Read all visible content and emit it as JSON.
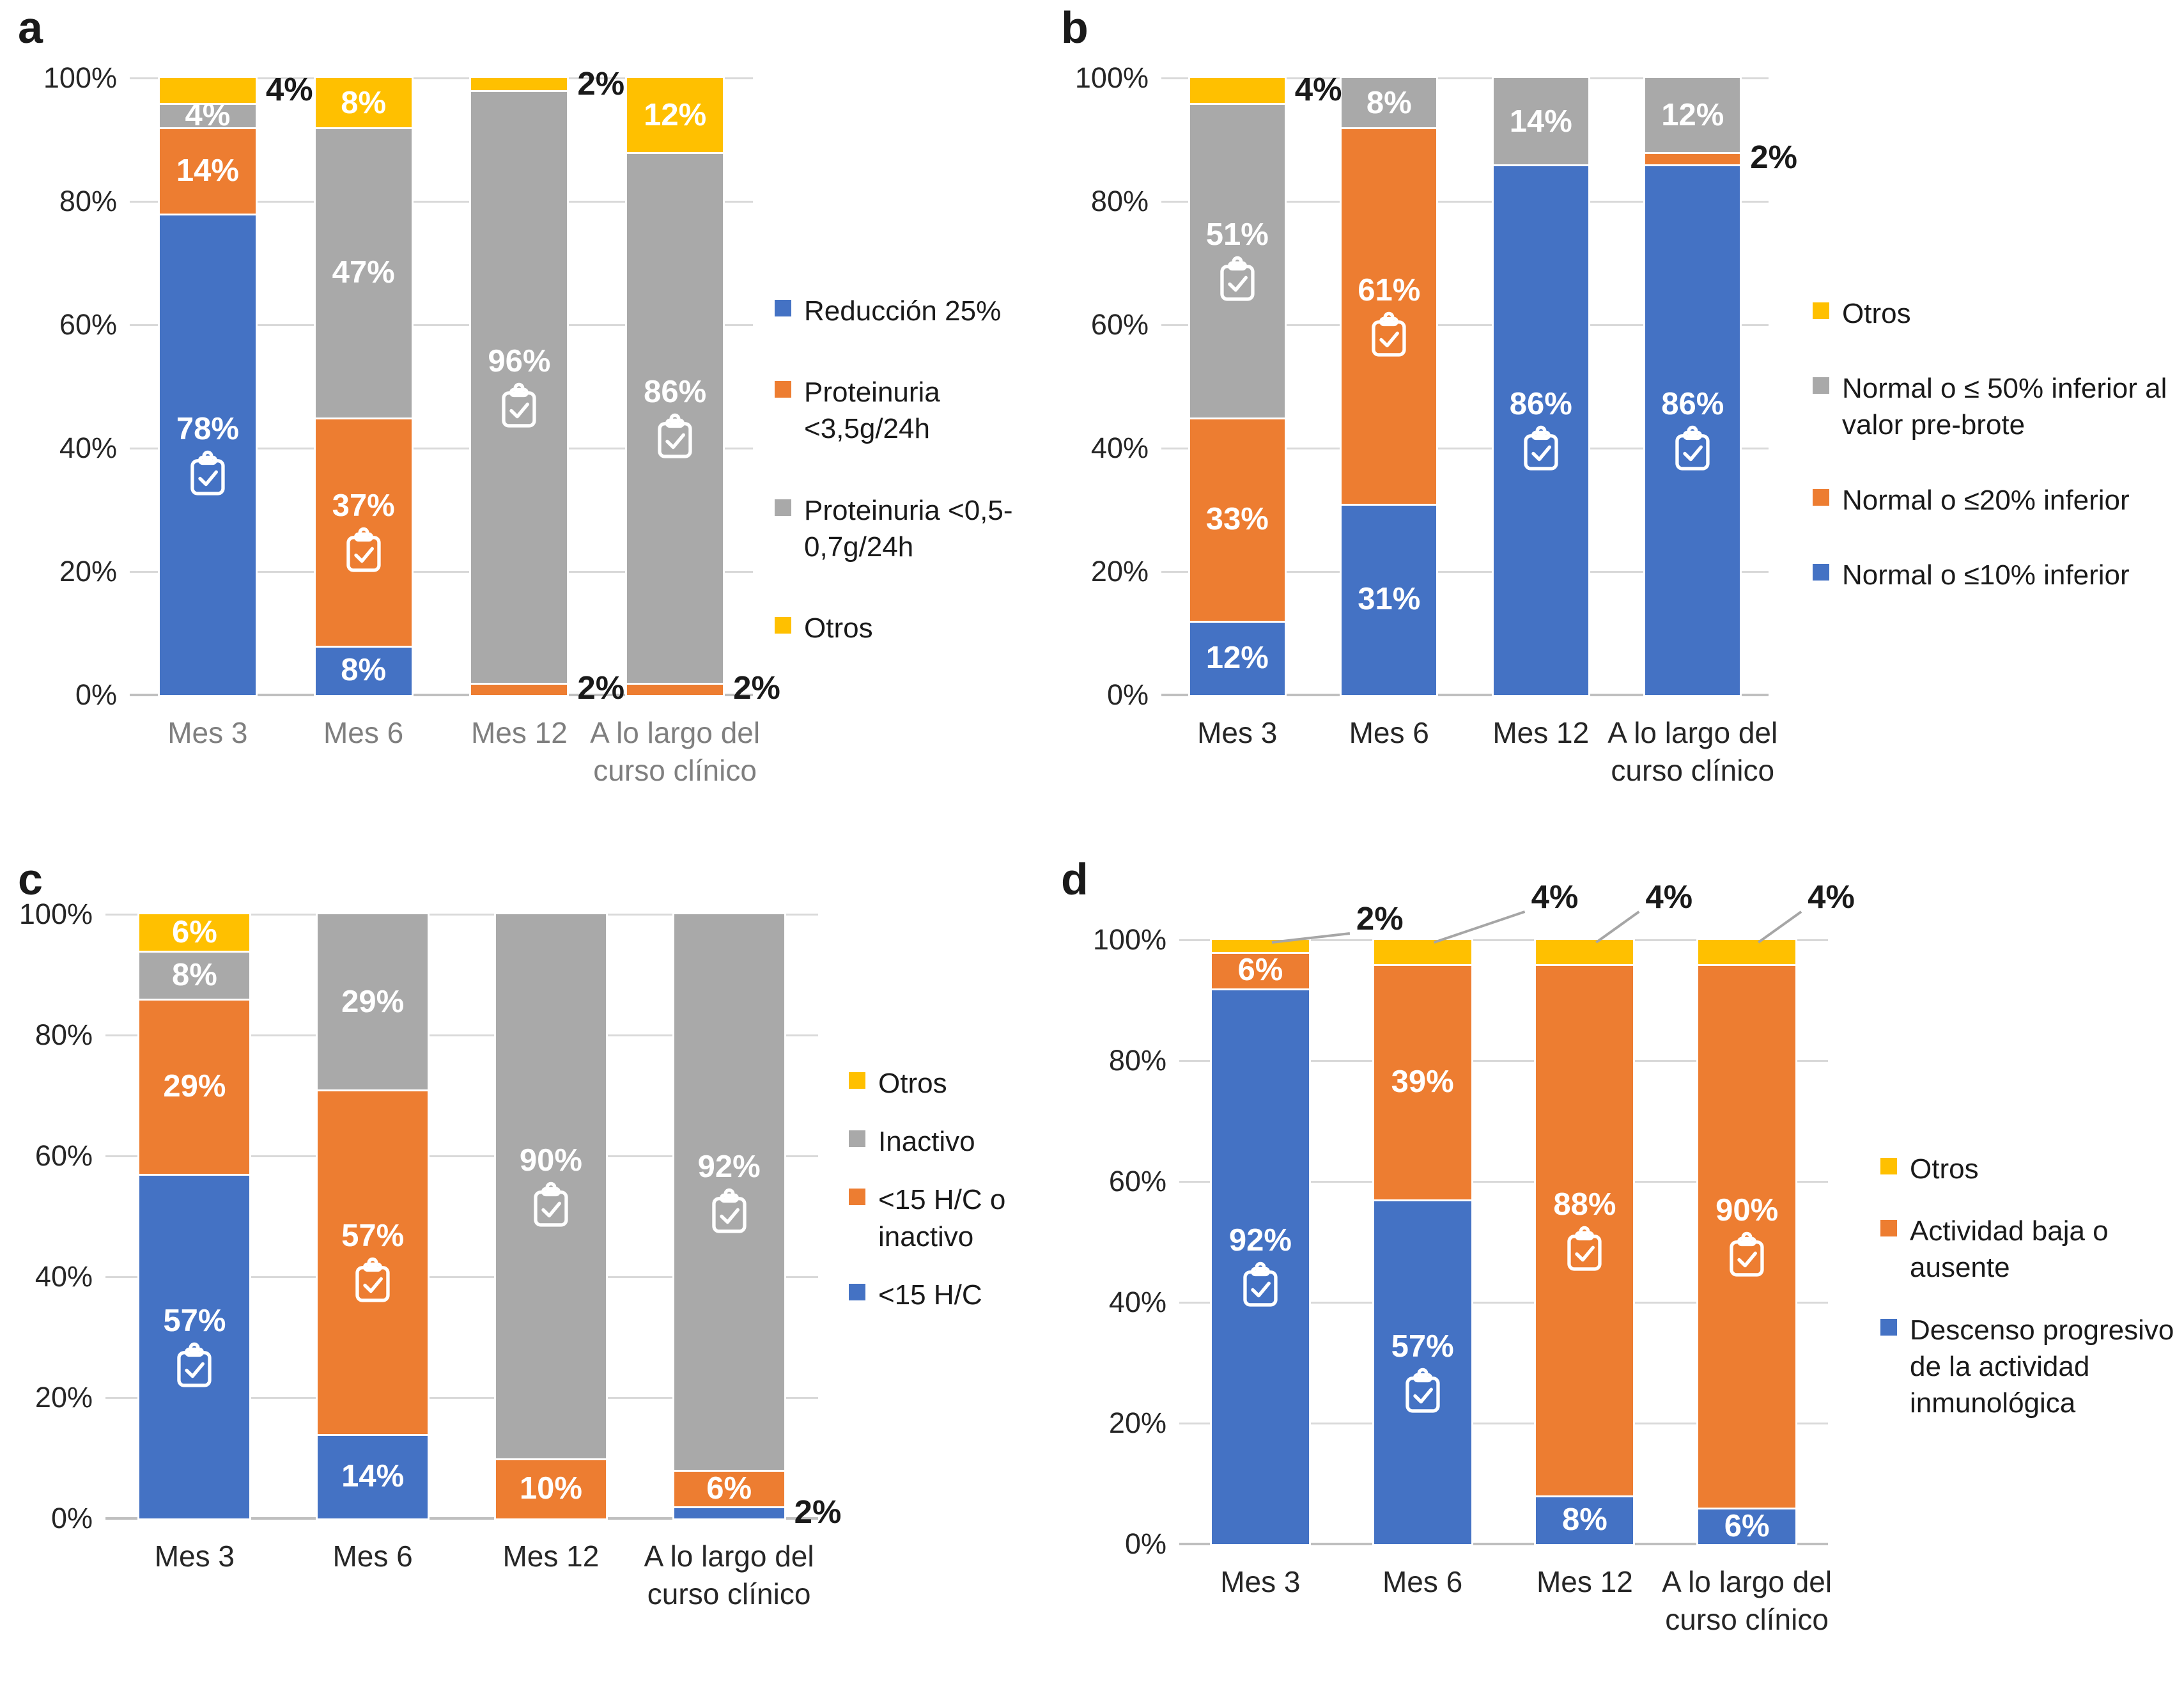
{
  "colors": {
    "blue": "#4472C4",
    "orange": "#ED7D31",
    "gray": "#A9A9A9",
    "yellow": "#FFC000",
    "gridline": "#D9D9D9",
    "axis_line": "#BFBFBF",
    "annotation_text": "#1a1a1a",
    "leader_line": "#A6A6A6",
    "x_label_default": "#262626",
    "x_label_muted": "#7F7F7F",
    "segment_label_text": "#FFFFFF"
  },
  "icon_glyph": "clipboard-check-icon",
  "chart_data": [
    {
      "id": "a",
      "panel_label": "a",
      "type": "bar",
      "stacked": true,
      "grid": true,
      "ylim": [
        0,
        100
      ],
      "y_ticks": [
        "100%",
        "80%",
        "60%",
        "40%",
        "20%",
        "0%"
      ],
      "x_label_muted": true,
      "legend_position": "right",
      "categories": [
        "Mes 3",
        "Mes 6",
        "Mes 12",
        "A lo largo del curso clínico"
      ],
      "series": [
        {
          "name": "Reducción 25%",
          "color_key": "blue",
          "values": [
            78,
            8,
            0,
            0
          ]
        },
        {
          "name": "Proteinuria <3,5g/24h",
          "color_key": "orange",
          "values": [
            14,
            37,
            2,
            2
          ]
        },
        {
          "name": "Proteinuria <0,5-0,7g/24h",
          "color_key": "gray",
          "values": [
            4,
            47,
            96,
            86
          ]
        },
        {
          "name": "Otros",
          "color_key": "yellow",
          "values": [
            4,
            8,
            2,
            12
          ]
        }
      ],
      "legend": [
        {
          "label": "Reducción 25%",
          "color_key": "blue"
        },
        {
          "label": "Proteinuria <3,5g/24h",
          "color_key": "orange"
        },
        {
          "label": "Proteinuria <0,5-0,7g/24h",
          "color_key": "gray"
        },
        {
          "label": "Otros",
          "color_key": "yellow"
        }
      ],
      "icon_segments": [
        {
          "category": "Mes 3",
          "series": "Reducción 25%"
        },
        {
          "category": "Mes 6",
          "series": "Proteinuria <3,5g/24h"
        },
        {
          "category": "Mes 12",
          "series": "Proteinuria <0,5-0,7g/24h"
        },
        {
          "category": "A lo largo del curso clínico",
          "series": "Proteinuria <0,5-0,7g/24h"
        }
      ],
      "outside_labels": [
        {
          "category": "Mes 3",
          "series": "Otros",
          "text": "4%",
          "placement": "right"
        },
        {
          "category": "Mes 12",
          "series": "Proteinuria <3,5g/24h",
          "text": "2%",
          "placement": "right"
        },
        {
          "category": "Mes 12",
          "series": "Otros",
          "text": "2%",
          "placement": "right"
        },
        {
          "category": "A lo largo del curso clínico",
          "series": "Proteinuria <3,5g/24h",
          "text": "2%",
          "placement": "right"
        }
      ]
    },
    {
      "id": "b",
      "panel_label": "b",
      "type": "bar",
      "stacked": true,
      "grid": true,
      "ylim": [
        0,
        100
      ],
      "y_ticks": [
        "100%",
        "80%",
        "60%",
        "40%",
        "20%",
        "0%"
      ],
      "x_label_muted": false,
      "legend_position": "right",
      "categories": [
        "Mes 3",
        "Mes 6",
        "Mes 12",
        "A lo largo del curso clínico"
      ],
      "series": [
        {
          "name": "Normal o ≤10% inferior",
          "color_key": "blue",
          "values": [
            12,
            31,
            86,
            86
          ]
        },
        {
          "name": "Normal o ≤20% inferior",
          "color_key": "orange",
          "values": [
            33,
            61,
            0,
            2
          ]
        },
        {
          "name": "Normal o ≤ 50% inferior al valor pre-brote",
          "color_key": "gray",
          "values": [
            51,
            8,
            14,
            12
          ]
        },
        {
          "name": "Otros",
          "color_key": "yellow",
          "values": [
            4,
            0,
            0,
            0
          ]
        }
      ],
      "legend": [
        {
          "label": "Otros",
          "color_key": "yellow"
        },
        {
          "label": "Normal o ≤ 50% inferior al valor pre-brote",
          "color_key": "gray"
        },
        {
          "label": "Normal o ≤20% inferior",
          "color_key": "orange"
        },
        {
          "label": "Normal o ≤10% inferior",
          "color_key": "blue"
        }
      ],
      "icon_segments": [
        {
          "category": "Mes 3",
          "series": "Normal o ≤ 50% inferior al valor pre-brote"
        },
        {
          "category": "Mes 6",
          "series": "Normal o ≤20% inferior"
        },
        {
          "category": "Mes 12",
          "series": "Normal o ≤10% inferior"
        },
        {
          "category": "A lo largo del curso clínico",
          "series": "Normal o ≤10% inferior"
        }
      ],
      "outside_labels": [
        {
          "category": "Mes 3",
          "series": "Otros",
          "text": "4%",
          "placement": "right"
        },
        {
          "category": "A lo largo del curso clínico",
          "series": "Normal o ≤20% inferior",
          "text": "2%",
          "placement": "right"
        }
      ]
    },
    {
      "id": "c",
      "panel_label": "c",
      "type": "bar",
      "stacked": true,
      "grid": true,
      "ylim": [
        0,
        100
      ],
      "y_ticks": [
        "100%",
        "80%",
        "60%",
        "40%",
        "20%",
        "0%"
      ],
      "x_label_muted": false,
      "legend_position": "right",
      "categories": [
        "Mes 3",
        "Mes 6",
        "Mes 12",
        "A lo largo del curso clínico"
      ],
      "series": [
        {
          "name": "<15 H/C",
          "color_key": "blue",
          "values": [
            57,
            14,
            0,
            2
          ]
        },
        {
          "name": "<15 H/C o inactivo",
          "color_key": "orange",
          "values": [
            29,
            57,
            10,
            6
          ]
        },
        {
          "name": "Inactivo",
          "color_key": "gray",
          "values": [
            8,
            29,
            90,
            92
          ]
        },
        {
          "name": "Otros",
          "color_key": "yellow",
          "values": [
            6,
            0,
            0,
            0
          ]
        }
      ],
      "legend": [
        {
          "label": "Otros",
          "color_key": "yellow"
        },
        {
          "label": "Inactivo",
          "color_key": "gray"
        },
        {
          "label": "<15 H/C o inactivo",
          "color_key": "orange"
        },
        {
          "label": "<15 H/C",
          "color_key": "blue"
        }
      ],
      "icon_segments": [
        {
          "category": "Mes 3",
          "series": "<15 H/C"
        },
        {
          "category": "Mes 6",
          "series": "<15 H/C o inactivo"
        },
        {
          "category": "Mes 12",
          "series": "Inactivo"
        },
        {
          "category": "A lo largo del curso clínico",
          "series": "Inactivo"
        }
      ],
      "outside_labels": [
        {
          "category": "A lo largo del curso clínico",
          "series": "<15 H/C",
          "text": "2%",
          "placement": "right"
        }
      ]
    },
    {
      "id": "d",
      "panel_label": "d",
      "type": "bar",
      "stacked": true,
      "grid": true,
      "ylim": [
        0,
        100
      ],
      "y_ticks": [
        "100%",
        "80%",
        "60%",
        "40%",
        "20%",
        "0%"
      ],
      "x_label_muted": false,
      "legend_position": "right",
      "categories": [
        "Mes 3",
        "Mes 6",
        "Mes 12",
        "A lo largo del curso clínico"
      ],
      "series": [
        {
          "name": "Descenso progresivo de la actividad inmunológica",
          "color_key": "blue",
          "values": [
            92,
            57,
            8,
            6
          ]
        },
        {
          "name": "Actividad baja o ausente",
          "color_key": "orange",
          "values": [
            6,
            39,
            88,
            90
          ]
        },
        {
          "name": "Otros",
          "color_key": "yellow",
          "values": [
            2,
            4,
            4,
            4
          ]
        }
      ],
      "legend": [
        {
          "label": "Otros",
          "color_key": "yellow"
        },
        {
          "label": "Actividad baja o ausente",
          "color_key": "orange"
        },
        {
          "label": "Descenso progresivo de la actividad inmunológica",
          "color_key": "blue"
        }
      ],
      "icon_segments": [
        {
          "category": "Mes 3",
          "series": "Descenso progresivo de la actividad inmunológica"
        },
        {
          "category": "Mes 6",
          "series": "Descenso progresivo de la actividad inmunológica"
        },
        {
          "category": "Mes 12",
          "series": "Actividad baja o ausente"
        },
        {
          "category": "A lo largo del curso clínico",
          "series": "Actividad baja o ausente"
        }
      ],
      "outside_labels": [
        {
          "category": "Mes 3",
          "series": "Otros",
          "text": "2%",
          "placement": "leader"
        },
        {
          "category": "Mes 6",
          "series": "Otros",
          "text": "4%",
          "placement": "leader"
        },
        {
          "category": "Mes 12",
          "series": "Otros",
          "text": "4%",
          "placement": "leader"
        },
        {
          "category": "A lo largo del curso clínico",
          "series": "Otros",
          "text": "4%",
          "placement": "leader"
        }
      ]
    }
  ]
}
